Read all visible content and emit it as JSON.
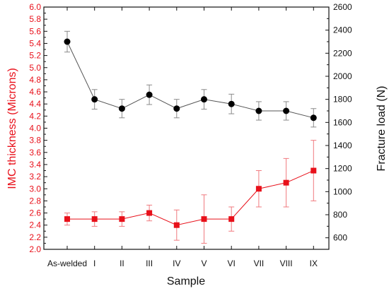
{
  "chart_data": {
    "type": "line",
    "xlabel": "Sample",
    "ylabel_left": "IMC thickness (Microns)",
    "ylabel_right": "Fracture load (N)",
    "categories": [
      "As-welded",
      "I",
      "II",
      "III",
      "IV",
      "V",
      "VI",
      "VII",
      "VIII",
      "IX"
    ],
    "ylim_left": [
      2.0,
      6.0
    ],
    "ylim_right": [
      500,
      2600
    ],
    "yticks_left": [
      "2.0",
      "2.2",
      "2.4",
      "2.6",
      "2.8",
      "3.0",
      "3.2",
      "3.4",
      "3.6",
      "3.8",
      "4.0",
      "4.2",
      "4.4",
      "4.6",
      "4.8",
      "5.0",
      "5.2",
      "5.4",
      "5.6",
      "5.8",
      "6.0"
    ],
    "yticks_right": [
      "600",
      "800",
      "1000",
      "1200",
      "1400",
      "1600",
      "1800",
      "2000",
      "2200",
      "2400",
      "2600"
    ],
    "left_axis_color": "#e8101a",
    "right_axis_color": "#111111",
    "grid": false,
    "series": [
      {
        "axis": "right",
        "marker": "circle",
        "color": "#000000",
        "line_color": "#555555",
        "values": [
          2300,
          1800,
          1720,
          1840,
          1720,
          1800,
          1760,
          1700,
          1700,
          1640
        ],
        "errors": [
          90,
          85,
          80,
          85,
          80,
          85,
          85,
          80,
          80,
          80
        ]
      },
      {
        "axis": "left",
        "marker": "square",
        "color": "#e8101a",
        "line_color": "#e8101a",
        "values": [
          2.5,
          2.5,
          2.5,
          2.6,
          2.4,
          2.5,
          2.5,
          3.0,
          3.1,
          3.3
        ],
        "errors": [
          0.1,
          0.12,
          0.12,
          0.13,
          0.25,
          0.4,
          0.2,
          0.3,
          0.4,
          0.5
        ]
      }
    ]
  }
}
